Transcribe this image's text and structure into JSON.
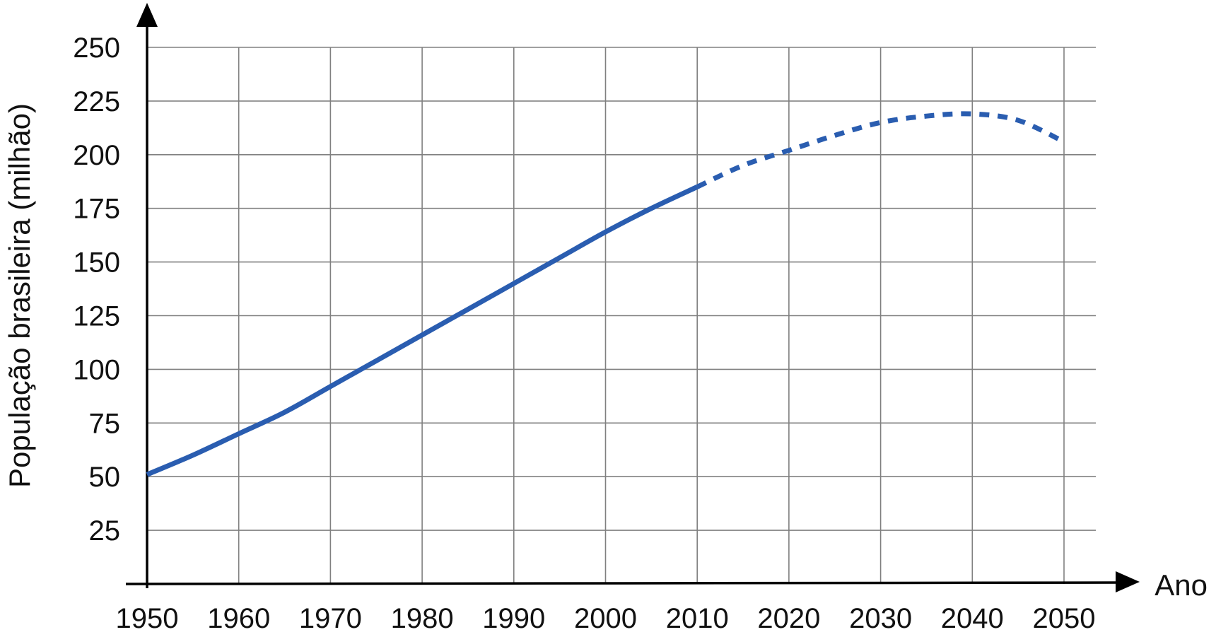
{
  "chart_data": {
    "type": "line",
    "title": "",
    "xlabel": "Ano",
    "ylabel": "População brasileira (milhão)",
    "xlim": [
      1950,
      2050
    ],
    "ylim": [
      0,
      250
    ],
    "grid": true,
    "colors": {
      "series": "#2a5db0",
      "grid": "#808080",
      "axis": "#000000"
    },
    "x_ticks": [
      1950,
      1960,
      1970,
      1980,
      1990,
      2000,
      2010,
      2020,
      2030,
      2040,
      2050
    ],
    "x_tick_labels": [
      "1950",
      "1960",
      "1970",
      "1980",
      "1990",
      "2000",
      "2010",
      "2020",
      "2030",
      "2040",
      "2050"
    ],
    "y_ticks": [
      25,
      50,
      75,
      100,
      125,
      150,
      175,
      200,
      225,
      250
    ],
    "y_tick_labels": [
      "25",
      "50",
      "75",
      "100",
      "125",
      "150",
      "175",
      "200",
      "225",
      "250"
    ],
    "series": [
      {
        "style": "solid",
        "x": [
          1950,
          1955,
          1960,
          1965,
          1970,
          1975,
          1980,
          1985,
          1990,
          1995,
          2000,
          2005,
          2010
        ],
        "y": [
          51,
          60,
          70,
          80,
          92,
          104,
          116,
          128,
          140,
          152,
          164,
          175,
          185
        ]
      },
      {
        "style": "dashed",
        "x": [
          2010,
          2015,
          2020,
          2025,
          2030,
          2035,
          2040,
          2045,
          2050
        ],
        "y": [
          185,
          195,
          202,
          209,
          215,
          218,
          219,
          216,
          206
        ]
      }
    ]
  }
}
